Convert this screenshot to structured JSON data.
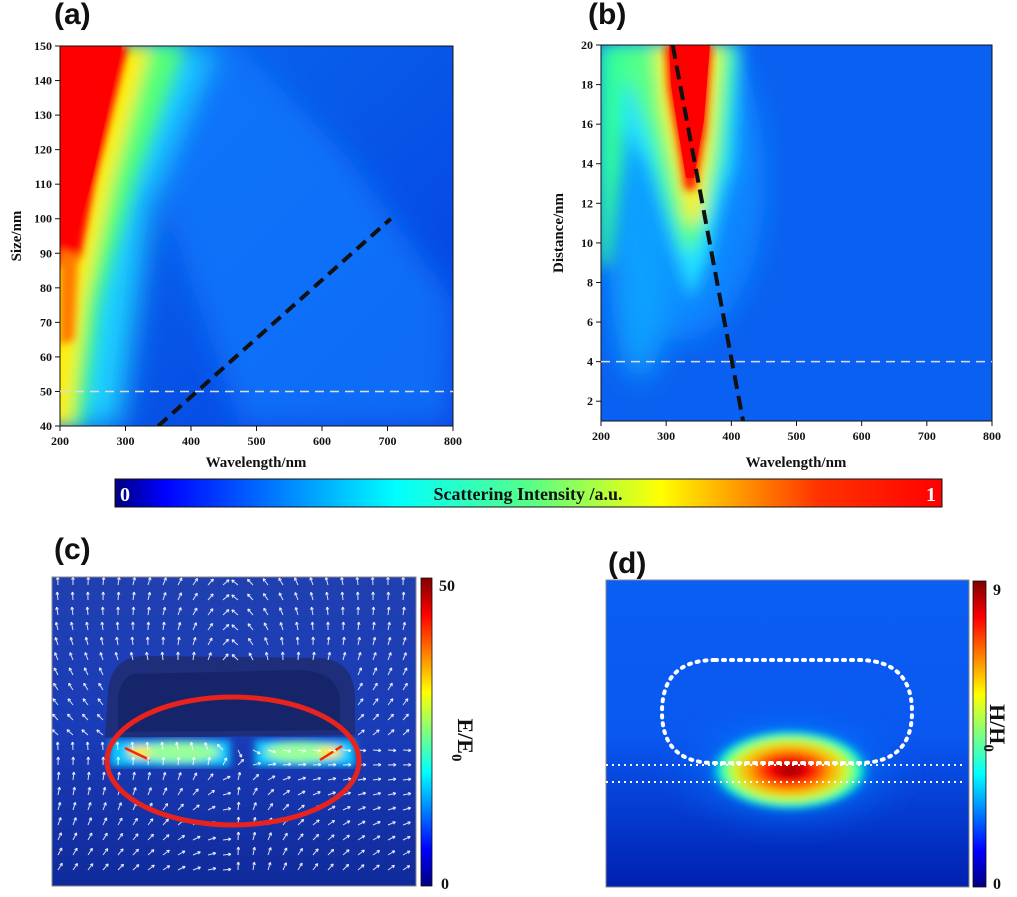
{
  "panels": {
    "a": "(a)",
    "b": "(b)",
    "c": "(c)",
    "d": "(d)"
  },
  "colors": {
    "jet": [
      "#00007f",
      "#0000ff",
      "#007fff",
      "#00ffff",
      "#7fff7f",
      "#ffff00",
      "#ff7f00",
      "#ff0000",
      "#7f0000"
    ]
  },
  "chart_data": [
    {
      "id": "a",
      "type": "heatmap",
      "title": "",
      "xlabel": "Wavelength/nm",
      "ylabel": "Size/nm",
      "xlim": [
        200,
        800
      ],
      "ylim": [
        40,
        150
      ],
      "xticks": [
        200,
        300,
        400,
        500,
        600,
        700,
        800
      ],
      "yticks": [
        40,
        50,
        60,
        70,
        80,
        90,
        100,
        110,
        120,
        130,
        140,
        150
      ],
      "annotations": [
        {
          "type": "dashed-line",
          "color": "#111111",
          "x": [
            350,
            705
          ],
          "y": [
            40,
            100
          ]
        },
        {
          "type": "dashed-line",
          "color": "#dddddd",
          "x": [
            200,
            800
          ],
          "y": [
            50,
            50
          ]
        }
      ]
    },
    {
      "id": "b",
      "type": "heatmap",
      "title": "",
      "xlabel": "Wavelength/nm",
      "ylabel": "Distance/nm",
      "xlim": [
        200,
        800
      ],
      "ylim": [
        1,
        20
      ],
      "xticks": [
        200,
        300,
        400,
        500,
        600,
        700,
        800
      ],
      "yticks": [
        2,
        4,
        6,
        8,
        10,
        12,
        14,
        16,
        18,
        20
      ],
      "annotations": [
        {
          "type": "dashed-line",
          "color": "#111111",
          "x": [
            310,
            418
          ],
          "y": [
            20,
            1
          ]
        },
        {
          "type": "dashed-line",
          "color": "#dddddd",
          "x": [
            200,
            800
          ],
          "y": [
            4,
            4
          ]
        }
      ]
    },
    {
      "id": "colorbar-main",
      "type": "colorbar",
      "label": "Scattering Intensity /a.u.",
      "min_label": "0",
      "max_label": "1"
    },
    {
      "id": "c",
      "type": "heatmap",
      "colorbar_label": "E/E",
      "colorbar_sub": "0",
      "colorbar_min": "0",
      "colorbar_max": "50",
      "highlight_color": "#e8231e"
    },
    {
      "id": "d",
      "type": "heatmap",
      "colorbar_label": "H/H",
      "colorbar_sub": "0",
      "colorbar_min": "0",
      "colorbar_max": "9"
    }
  ]
}
